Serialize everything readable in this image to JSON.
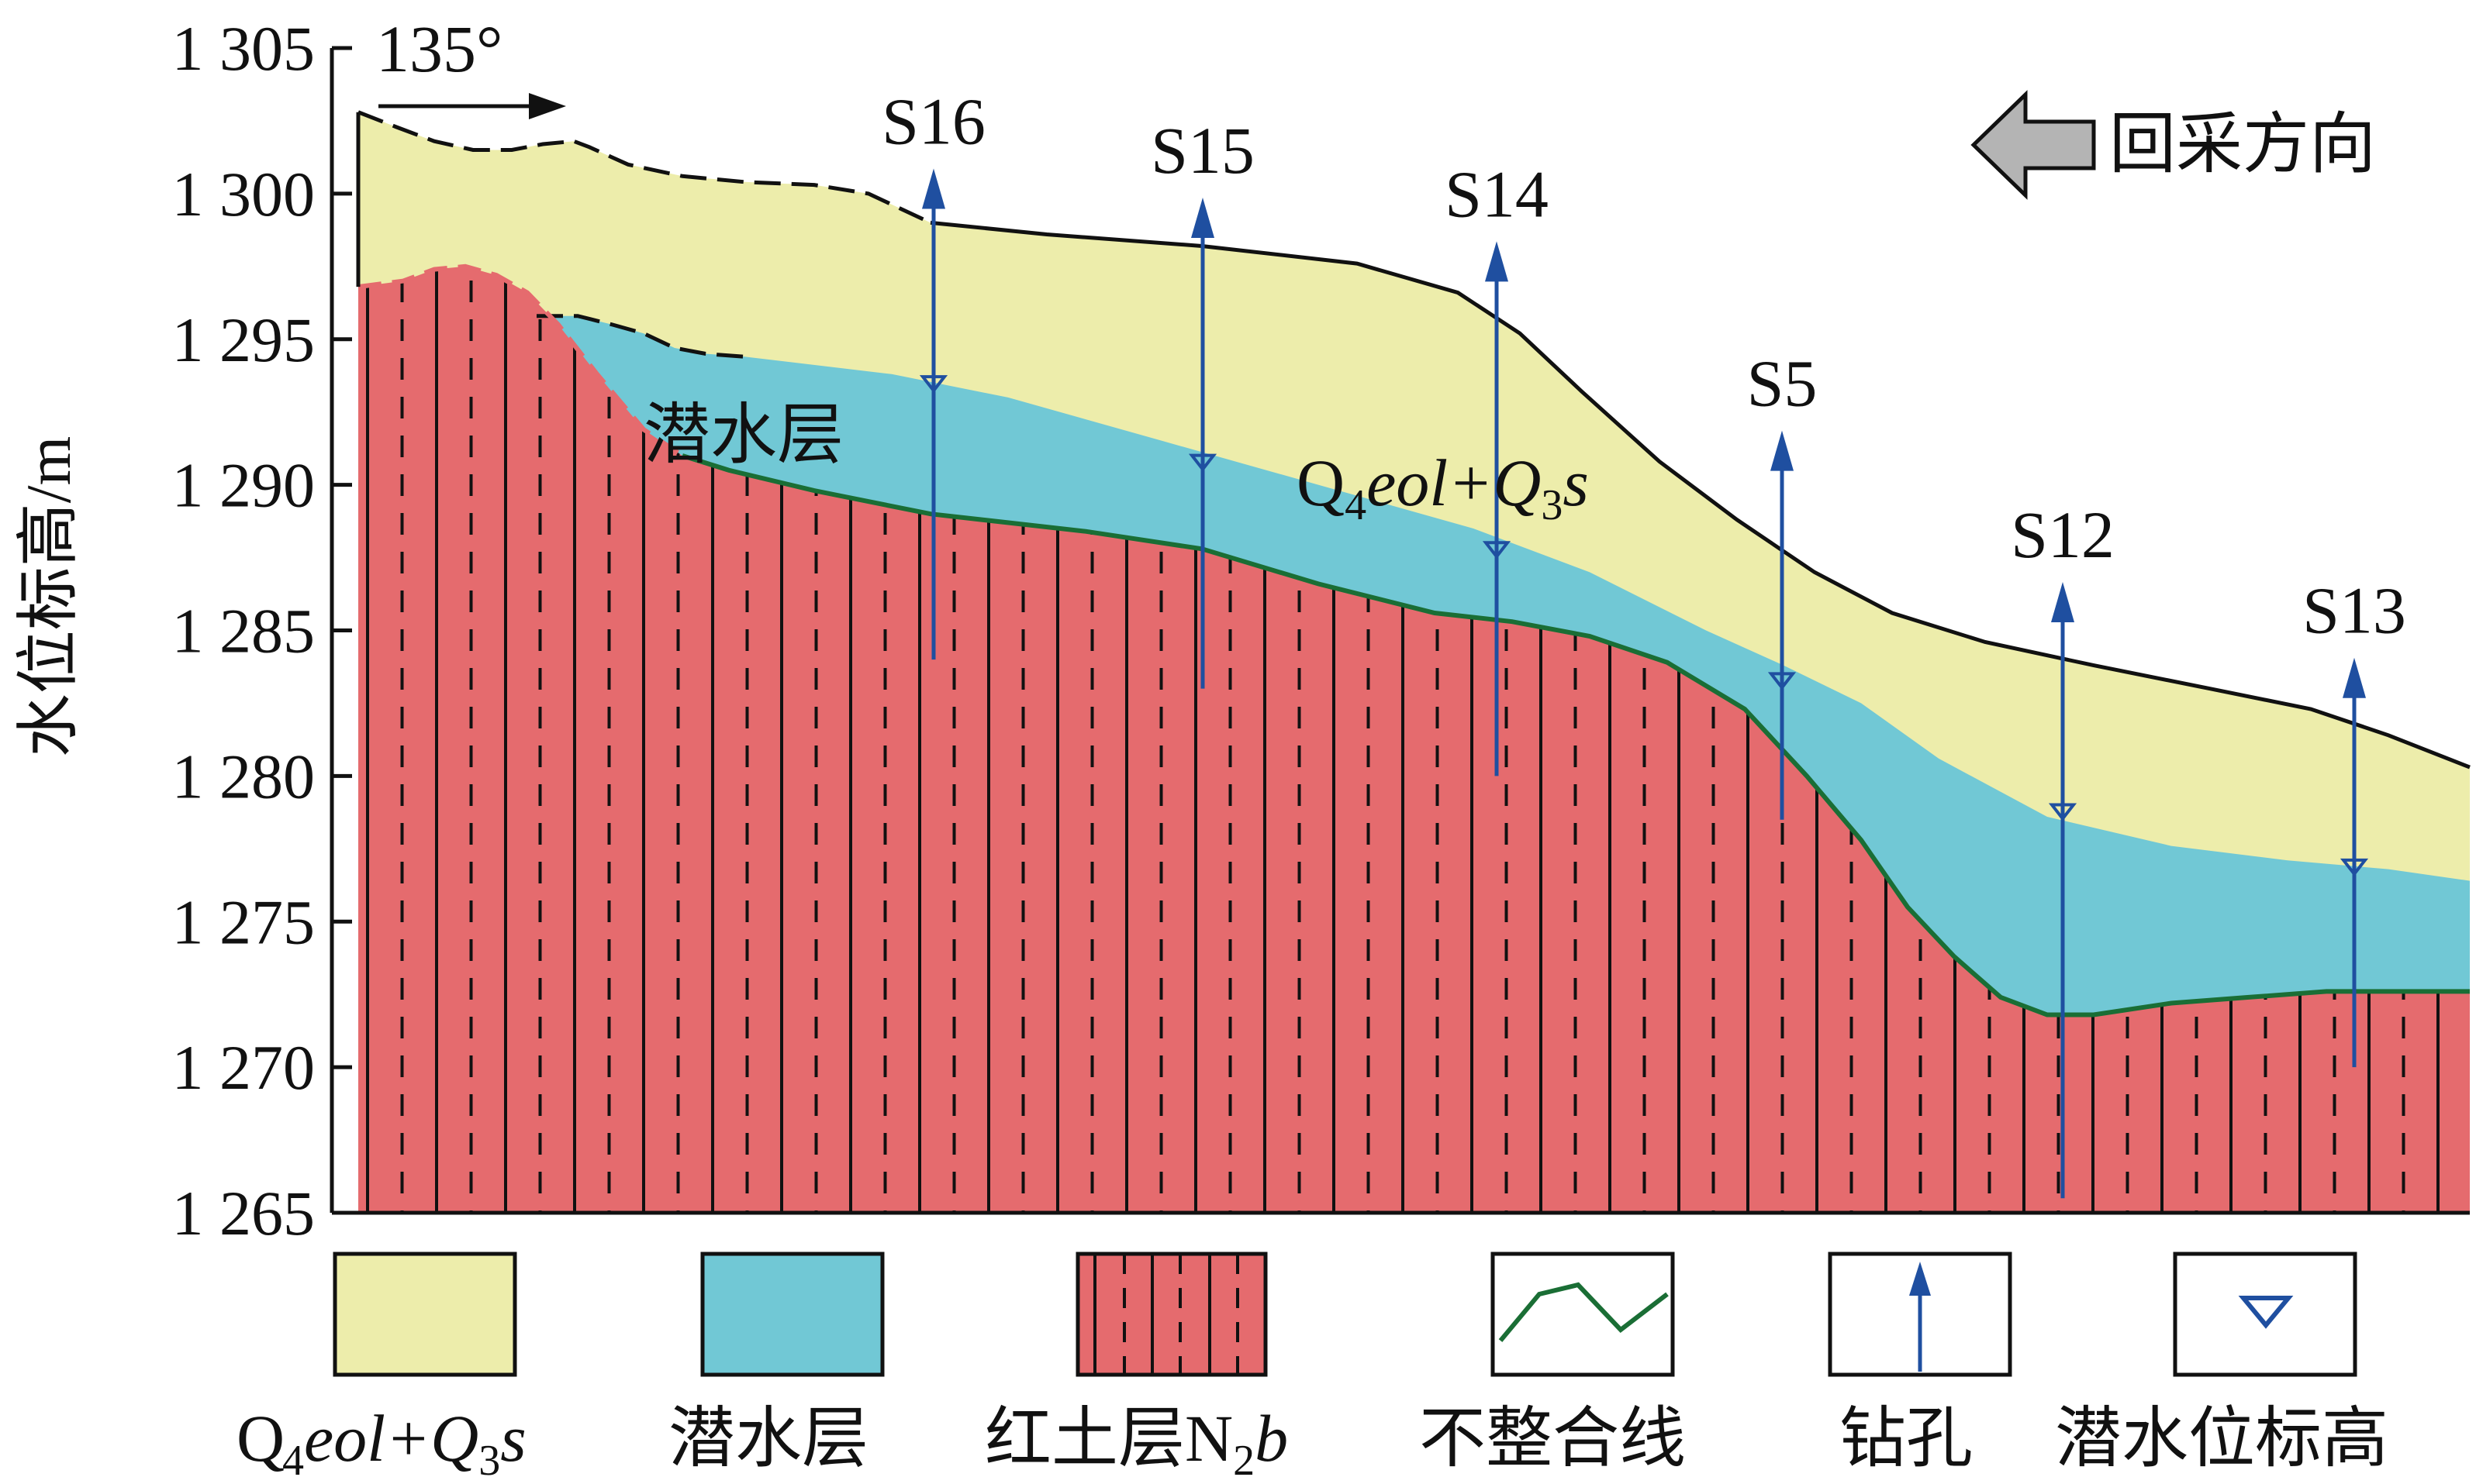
{
  "axis": {
    "ylabel": "水位标高/m",
    "ymin": 1265,
    "ymax": 1305,
    "ticks": [
      {
        "value": 1305,
        "label": "1 305"
      },
      {
        "value": 1300,
        "label": "1 300"
      },
      {
        "value": 1295,
        "label": "1 295"
      },
      {
        "value": 1290,
        "label": "1 290"
      },
      {
        "value": 1285,
        "label": "1 285"
      },
      {
        "value": 1280,
        "label": "1 280"
      },
      {
        "value": 1275,
        "label": "1 275"
      },
      {
        "value": 1270,
        "label": "1 270"
      },
      {
        "value": 1265,
        "label": "1 265"
      }
    ]
  },
  "direction": {
    "label": "135°"
  },
  "mining": {
    "label": "回采方向"
  },
  "layers": {
    "aquifer_label": "潜水层",
    "loess_sub1": "4",
    "loess_mid": "eol+Q",
    "loess_sub2": "3",
    "loess_tail": "s"
  },
  "boreholes": [
    {
      "id": "S16",
      "top": 1299.0,
      "bottom": 1284.0,
      "water": 1293.5
    },
    {
      "id": "S15",
      "top": 1298.0,
      "bottom": 1283.0,
      "water": 1290.8
    },
    {
      "id": "S14",
      "top": 1296.5,
      "bottom": 1280.0,
      "water": 1287.8
    },
    {
      "id": "S5",
      "top": 1290.0,
      "bottom": 1278.5,
      "water": 1283.3
    },
    {
      "id": "S12",
      "top": 1284.8,
      "bottom": 1265.5,
      "water": 1278.8
    },
    {
      "id": "S13",
      "top": 1282.2,
      "bottom": 1270.0,
      "water": 1276.9
    }
  ],
  "legend": [
    {
      "label_prefix": "Q",
      "sub1": "4",
      "mid": "eol+Q",
      "sub2": "3",
      "tail": "s",
      "color": "#ededab"
    },
    {
      "label": "潜水层",
      "color": "#71c8d5"
    },
    {
      "label": "红土层N",
      "sub": "2",
      "tail": "b",
      "color": "#e56b6e"
    },
    {
      "label": "不整合线",
      "color": "#1a6e35"
    },
    {
      "label": "钻孔",
      "color": "#1f4fa0"
    },
    {
      "label": "潜水位标高",
      "color": "#1f4fa0"
    }
  ]
}
